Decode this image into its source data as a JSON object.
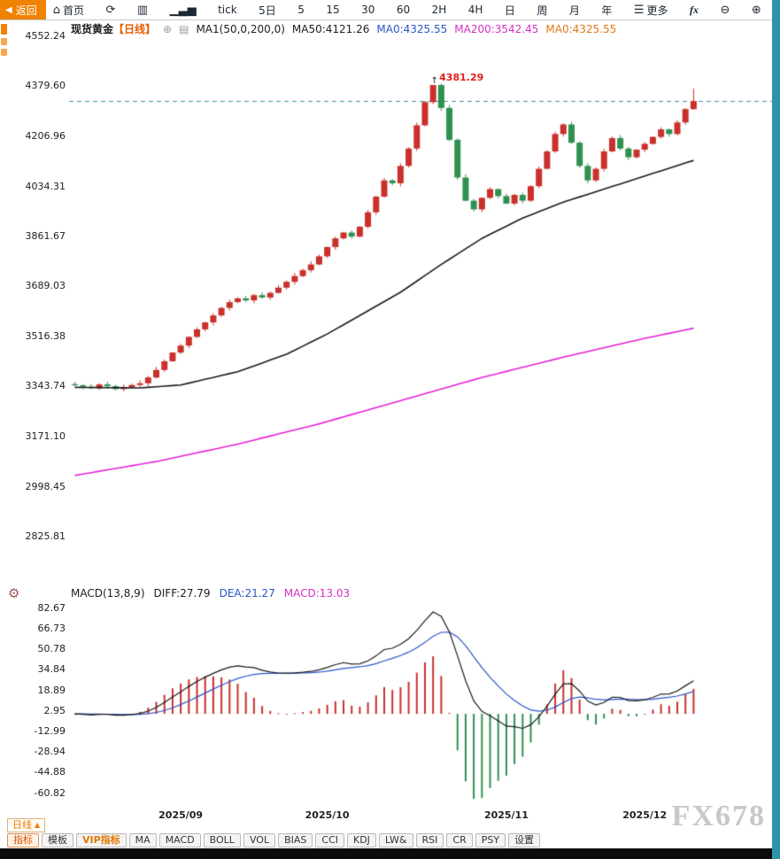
{
  "toolbar": {
    "back_arrow": "◀",
    "back_label": "返回",
    "items": [
      {
        "icon": "⌂",
        "icon_name": "home-icon",
        "label": "首页",
        "name": "home-button"
      },
      {
        "icon": "⟳",
        "icon_name": "refresh-icon",
        "label": "",
        "name": "refresh-button"
      },
      {
        "icon": "▥",
        "icon_name": "kline-chart-icon",
        "label": "",
        "name": "kline-chart-button"
      },
      {
        "icon": "▁▃▅",
        "icon_name": "volume-bars-icon",
        "label": "",
        "name": "volume-chart-button"
      },
      {
        "label": "tick",
        "name": "timeframe-tick"
      },
      {
        "label": "5日",
        "name": "timeframe-5d"
      },
      {
        "label": "5",
        "name": "timeframe-5m"
      },
      {
        "label": "15",
        "name": "timeframe-15m"
      },
      {
        "label": "30",
        "name": "timeframe-30m"
      },
      {
        "label": "60",
        "name": "timeframe-60m"
      },
      {
        "label": "2H",
        "name": "timeframe-2h"
      },
      {
        "label": "4H",
        "name": "timeframe-4h"
      },
      {
        "label": "日",
        "name": "timeframe-daily"
      },
      {
        "label": "周",
        "name": "timeframe-weekly"
      },
      {
        "label": "月",
        "name": "timeframe-monthly"
      },
      {
        "label": "年",
        "name": "timeframe-yearly"
      },
      {
        "icon": "☰",
        "icon_name": "menu-icon",
        "label": "更多",
        "name": "more-button"
      },
      {
        "label": "fx",
        "name": "fx-indicators-button",
        "cls": "fx"
      },
      {
        "icon": "⊖",
        "icon_name": "zoom-out-icon",
        "label": "",
        "name": "zoom-out-button"
      },
      {
        "icon": "⊕",
        "icon_name": "zoom-in-icon",
        "label": "",
        "name": "zoom-in-button"
      }
    ]
  },
  "main_chart_header": {
    "symbol": "现货黄金",
    "period": "【日线】",
    "settings_icon": "⊕",
    "indicator_icon": "▤",
    "ma_label": "MA1(50,0,200,0)",
    "ma50": "MA50:4121.26",
    "ma0_blue": "MA0:4325.55",
    "ma200": "MA200:3542.45",
    "ma0_orange": "MA0:4325.55"
  },
  "macd_header": {
    "name": "MACD(13,8,9)",
    "diff": "DIFF:27.79",
    "dea": "DEA:21.27",
    "macd": "MACD:13.03"
  },
  "chart_data": [
    {
      "type": "candlestick",
      "title": "现货黄金 日线",
      "y_ticks": [
        4552.24,
        4379.6,
        4206.96,
        4034.31,
        3861.67,
        3689.03,
        3516.38,
        3343.74,
        3171.1,
        2998.45,
        2825.81
      ],
      "first_open": 3349,
      "closes": [
        3345,
        3340,
        3335,
        3348,
        3342,
        3332,
        3338,
        3346,
        3352,
        3372,
        3398,
        3428,
        3458,
        3482,
        3512,
        3538,
        3562,
        3586,
        3612,
        3632,
        3645,
        3638,
        3656,
        3648,
        3664,
        3682,
        3702,
        3722,
        3742,
        3762,
        3790,
        3822,
        3852,
        3872,
        3858,
        3892,
        3942,
        3996,
        4052,
        4042,
        4102,
        4162,
        4242,
        4322,
        4381,
        4302,
        4192,
        4062,
        3982,
        3952,
        3992,
        4022,
        3998,
        3972,
        4002,
        3982,
        4032,
        4092,
        4152,
        4212,
        4245,
        4182,
        4102,
        4052,
        4092,
        4152,
        4198,
        4162,
        4132,
        4158,
        4178,
        4202,
        4228,
        4212,
        4252,
        4298,
        4325.55
      ],
      "peak_index": 44,
      "peak_high": 4381.29,
      "peak_label": "4381.29",
      "last_high": 4369,
      "current_price": 4325.55,
      "ma50_anchors": [
        [
          0,
          3338
        ],
        [
          8,
          3336
        ],
        [
          13,
          3346
        ],
        [
          20,
          3392
        ],
        [
          26,
          3452
        ],
        [
          31,
          3522
        ],
        [
          36,
          3602
        ],
        [
          40,
          3666
        ],
        [
          45,
          3762
        ],
        [
          50,
          3852
        ],
        [
          55,
          3922
        ],
        [
          60,
          3977
        ],
        [
          65,
          4022
        ],
        [
          70,
          4067
        ],
        [
          76,
          4121
        ]
      ],
      "ma200_anchors": [
        [
          0,
          3034
        ],
        [
          10,
          3082
        ],
        [
          20,
          3142
        ],
        [
          30,
          3212
        ],
        [
          40,
          3292
        ],
        [
          50,
          3372
        ],
        [
          60,
          3442
        ],
        [
          70,
          3507
        ],
        [
          76,
          3542
        ]
      ],
      "month_starts": [
        {
          "label": "2025/09",
          "index": 13
        },
        {
          "label": "2025/10",
          "index": 31
        },
        {
          "label": "2025/11",
          "index": 53
        },
        {
          "label": "2025/12",
          "index": 70
        }
      ]
    },
    {
      "type": "macd",
      "params": "MACD(13,8,9)",
      "y_ticks": [
        82.67,
        66.73,
        50.78,
        34.84,
        18.89,
        2.95,
        -12.99,
        -28.94,
        -44.88,
        -60.82
      ],
      "diff_last": 27.79,
      "dea_last": 21.27,
      "macd_last": 13.03
    }
  ],
  "bottom": {
    "period_button": {
      "label": "日线",
      "arrow": "▲"
    },
    "tabs": [
      {
        "label": "指标",
        "style": "selected"
      },
      {
        "label": "模板",
        "style": ""
      },
      {
        "label": "VIP指标",
        "style": "vip"
      },
      {
        "label": "MA",
        "style": ""
      },
      {
        "label": "MACD",
        "style": ""
      },
      {
        "label": "BOLL",
        "style": ""
      },
      {
        "label": "VOL",
        "style": ""
      },
      {
        "label": "BIAS",
        "style": ""
      },
      {
        "label": "CCI",
        "style": ""
      },
      {
        "label": "KDJ",
        "style": ""
      },
      {
        "label": "LW&",
        "style": ""
      },
      {
        "label": "RSI",
        "style": ""
      },
      {
        "label": "CR",
        "style": ""
      },
      {
        "label": "PSY",
        "style": ""
      },
      {
        "label": "设置",
        "style": ""
      }
    ],
    "watermark": "FX678"
  },
  "colors": {
    "up": "#c9302c",
    "down": "#2e9150",
    "ma50": "#1a1a1a",
    "ma200": "#e621d6",
    "diff": "#1a1a1a",
    "dea": "#2b55c8",
    "current_line": "#3e8fa6",
    "accent_orange": "#ee7c00",
    "peak": "#e51c1c",
    "scrollbar": "#2e94a8",
    "watermark": "#c8c8c8"
  }
}
